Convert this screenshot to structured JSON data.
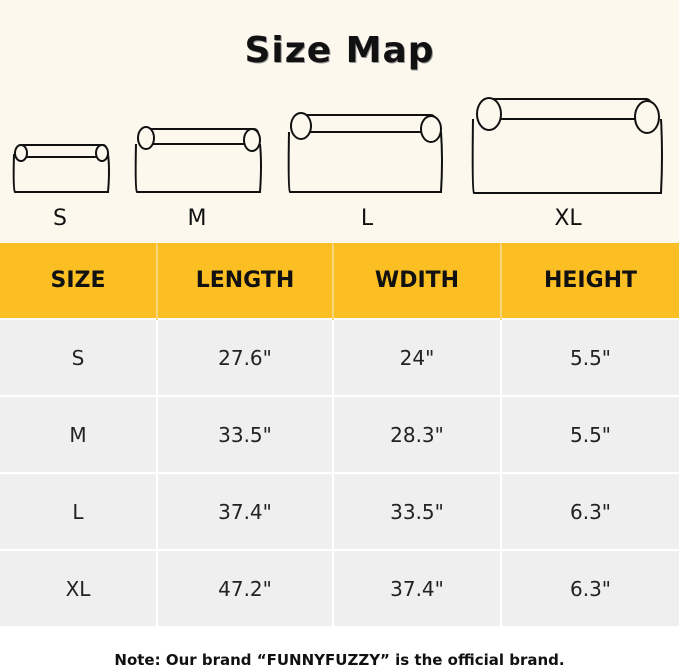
{
  "title": "Size Map",
  "size_labels": [
    "S",
    "M",
    "L",
    "XL"
  ],
  "table": {
    "headers": [
      "SIZE",
      "LENGTH",
      "WDITH",
      "HEIGHT"
    ],
    "rows": [
      [
        "S",
        "27.6\"",
        "24\"",
        "5.5\""
      ],
      [
        "M",
        "33.5\"",
        "28.3\"",
        "5.5\""
      ],
      [
        "L",
        "37.4\"",
        "33.5\"",
        "6.3\""
      ],
      [
        "XL",
        "47.2\"",
        "37.4\"",
        "6.3\""
      ]
    ]
  },
  "note": "Note: Our brand “FUNNYFUZZY” is the official brand.",
  "colors": {
    "header": "#fbbf24",
    "background_top": "#fcf8ee",
    "row": "#efefef"
  }
}
